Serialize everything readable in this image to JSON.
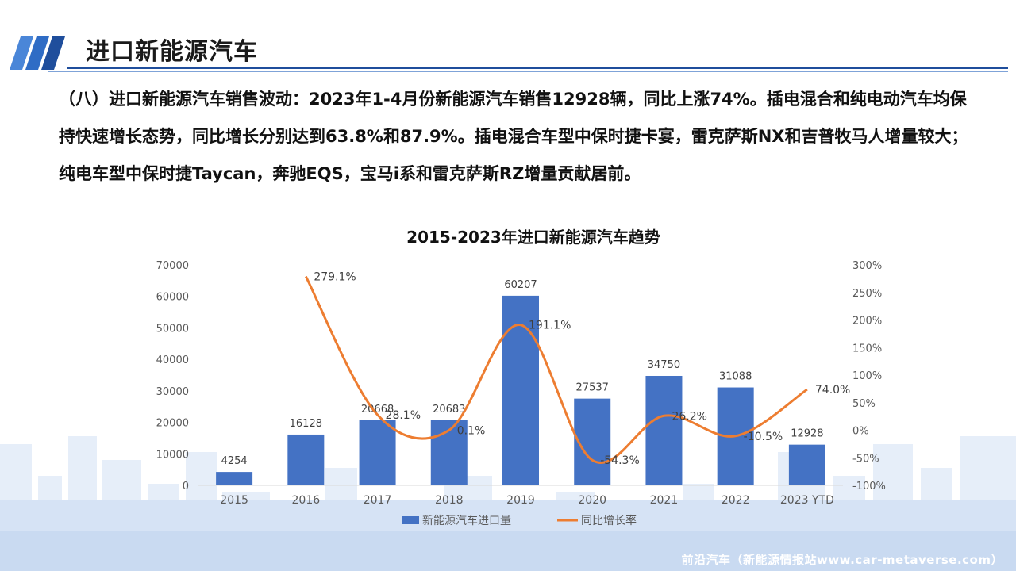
{
  "header": {
    "title": "进口新能源汽车"
  },
  "body": {
    "paragraph": "（八）进口新能源汽车销售波动：2023年1-4月份新能源汽车销售12928辆，同比上涨74%。插电混合和纯电动汽车均保持快速增长态势，同比增长分别达到63.8%和87.9%。插电混合车型中保时捷卡宴，雷克萨斯NX和吉普牧马人增量较大；纯电车型中保时捷Taycan，奔驰EQS，宝马i系和雷克萨斯RZ增量贡献居前。"
  },
  "chart_data": {
    "type": "bar+line",
    "title": "2015-2023年进口新能源汽车趋势",
    "categories": [
      "2015",
      "2016",
      "2017",
      "2018",
      "2019",
      "2020",
      "2021",
      "2022",
      "2023 YTD"
    ],
    "series": [
      {
        "name": "新能源汽车进口量",
        "type": "bar",
        "axis": "left",
        "values": [
          4254,
          16128,
          20668,
          20683,
          60207,
          27537,
          34750,
          31088,
          12928
        ],
        "labels": [
          "4254",
          "16128",
          "20668",
          "20683",
          "60207",
          "27537",
          "34750",
          "31088",
          "12928"
        ],
        "color": "#4472c4"
      },
      {
        "name": "同比增长率",
        "type": "line",
        "axis": "right",
        "values": [
          null,
          279.1,
          28.1,
          0.1,
          191.1,
          -54.3,
          26.2,
          -10.5,
          74.0
        ],
        "labels": [
          "",
          "279.1%",
          "28.1%",
          "0.1%",
          "191.1%",
          "-54.3%",
          "26.2%",
          "-10.5%",
          "74.0%"
        ],
        "color": "#ed7d31"
      }
    ],
    "y_left": {
      "min": 0,
      "max": 70000,
      "ticks": [
        "0",
        "10000",
        "20000",
        "30000",
        "40000",
        "50000",
        "60000",
        "70000"
      ]
    },
    "y_right": {
      "min": -100,
      "max": 300,
      "ticks": [
        "-100%",
        "-50%",
        "0%",
        "50%",
        "100%",
        "150%",
        "200%",
        "250%",
        "300%"
      ]
    },
    "grid": false,
    "legend": "bottom"
  },
  "watermark": "前沿汽车（新能源情报站www.car-metaverse.com）"
}
